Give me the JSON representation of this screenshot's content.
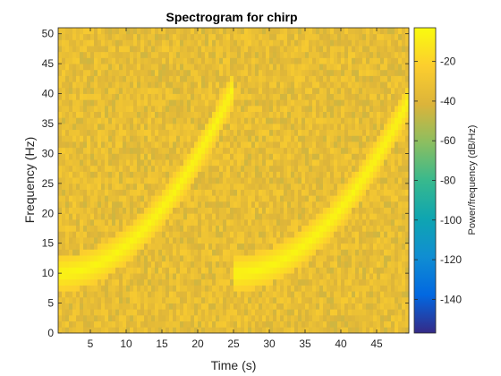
{
  "chart_data": {
    "type": "heatmap",
    "title": "Spectrogram for chirp",
    "xlabel": "Time (s)",
    "ylabel": "Frequency (Hz)",
    "xlim": [
      0.5,
      49.5
    ],
    "ylim": [
      0,
      51
    ],
    "xticks": [
      5,
      10,
      15,
      20,
      25,
      30,
      35,
      40,
      45
    ],
    "yticks": [
      0,
      5,
      10,
      15,
      20,
      25,
      30,
      35,
      40,
      45,
      50
    ],
    "grid": false,
    "colormap": "parula",
    "colormap_stops": [
      "#352a87",
      "#0268e1",
      "#108ed2",
      "#0fa5b1",
      "#38b98d",
      "#8cbe60",
      "#dcb43a",
      "#fcce2e",
      "#f9fb0e"
    ],
    "background_power_db": -35,
    "chirp_segments": [
      {
        "t_start": 0.5,
        "t_end": 25,
        "f_start_hz": 10,
        "f_end_hz": 41
      },
      {
        "t_start": 25,
        "t_end": 49.5,
        "f_start_hz": 10,
        "f_end_hz": 39
      }
    ],
    "chirp_peak_power_db": -5,
    "colorbar": {
      "label": "Power/frequency (dB/Hz)",
      "range": [
        -157,
        -3
      ],
      "ticks": [
        -20,
        -40,
        -60,
        -80,
        -100,
        -120,
        -140
      ]
    }
  }
}
